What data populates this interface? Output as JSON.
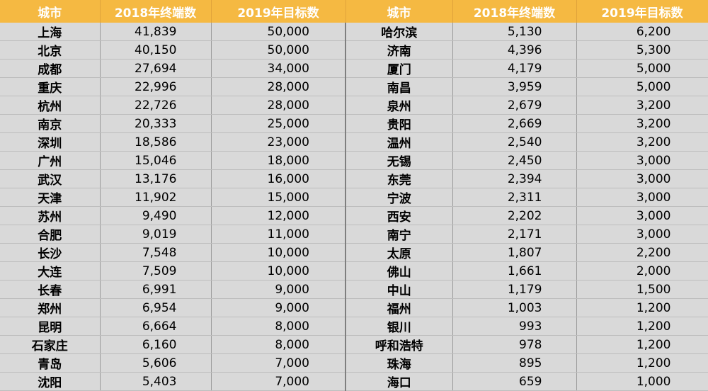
{
  "headers": [
    "城市",
    "2018年终端数",
    "2019年目标数",
    "城市",
    "2018年终端数",
    "2019年目标数"
  ],
  "rows": [
    [
      "上海",
      "41,839",
      "50,000",
      "哈尔滨",
      "5,130",
      "6,200"
    ],
    [
      "北京",
      "40,150",
      "50,000",
      "济南",
      "4,396",
      "5,300"
    ],
    [
      "成都",
      "27,694",
      "34,000",
      "厦门",
      "4,179",
      "5,000"
    ],
    [
      "重庆",
      "22,996",
      "28,000",
      "南昌",
      "3,959",
      "5,000"
    ],
    [
      "杭州",
      "22,726",
      "28,000",
      "泉州",
      "2,679",
      "3,200"
    ],
    [
      "南京",
      "20,333",
      "25,000",
      "贵阳",
      "2,669",
      "3,200"
    ],
    [
      "深圳",
      "18,586",
      "23,000",
      "温州",
      "2,540",
      "3,200"
    ],
    [
      "广州",
      "15,046",
      "18,000",
      "无锡",
      "2,450",
      "3,000"
    ],
    [
      "武汉",
      "13,176",
      "16,000",
      "东莞",
      "2,394",
      "3,000"
    ],
    [
      "天津",
      "11,902",
      "15,000",
      "宁波",
      "2,311",
      "3,000"
    ],
    [
      "苏州",
      "9,490",
      "12,000",
      "西安",
      "2,202",
      "3,000"
    ],
    [
      "合肥",
      "9,019",
      "11,000",
      "南宁",
      "2,171",
      "3,000"
    ],
    [
      "长沙",
      "7,548",
      "10,000",
      "太原",
      "1,807",
      "2,200"
    ],
    [
      "大连",
      "7,509",
      "10,000",
      "佛山",
      "1,661",
      "2,000"
    ],
    [
      "长春",
      "6,991",
      "9,000",
      "中山",
      "1,179",
      "1,500"
    ],
    [
      "郑州",
      "6,954",
      "9,000",
      "福州",
      "1,003",
      "1,200"
    ],
    [
      "昆明",
      "6,664",
      "8,000",
      "银川",
      "993",
      "1,200"
    ],
    [
      "石家庄",
      "6,160",
      "8,000",
      "呼和浩特",
      "978",
      "1,200"
    ],
    [
      "青岛",
      "5,606",
      "7,000",
      "珠海",
      "895",
      "1,200"
    ],
    [
      "沈阳",
      "5,403",
      "7,000",
      "海口",
      "659",
      "1,000"
    ]
  ],
  "colors": {
    "header_bg": "#f5b942",
    "header_text": "#ffffff",
    "body_bg": "#d9d9d9"
  }
}
